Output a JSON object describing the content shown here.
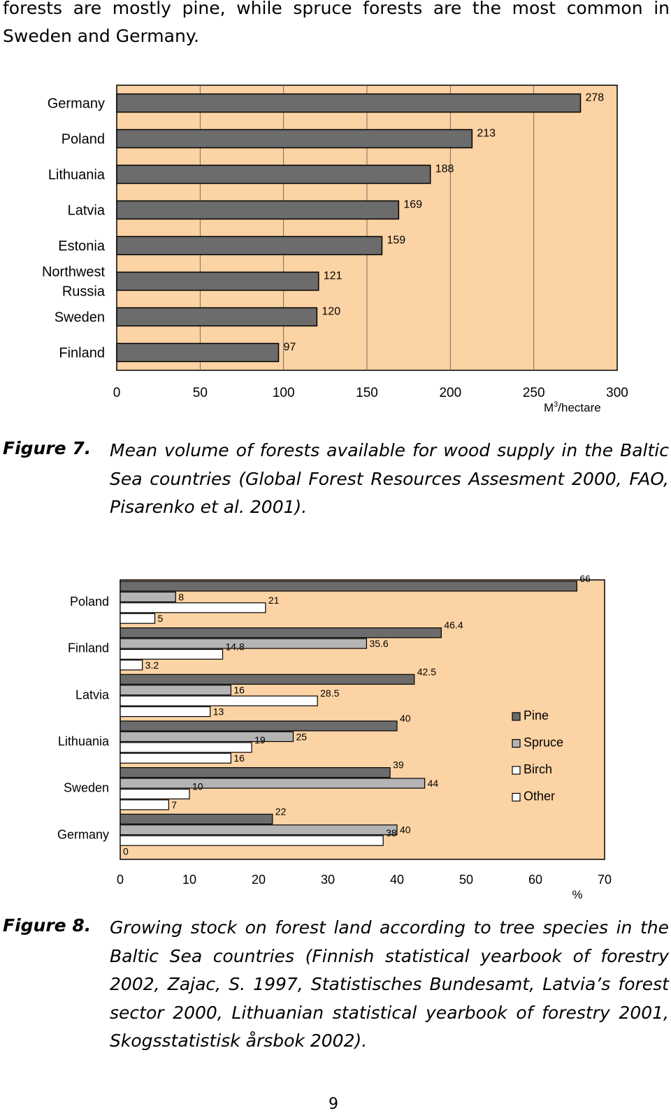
{
  "document": {
    "intro_text": "forests are mostly pine, while spruce forests are the most common in Sweden and Germany.",
    "page_number": "9"
  },
  "colors": {
    "plot_background": "#fcd3a4",
    "pine": "#6c6c6c",
    "spruce": "#b4b4b4",
    "birch": "#ffffff",
    "other": "#ffffff"
  },
  "figure7": {
    "label": "Figure 7.",
    "caption": "Mean volume of forests available for wood supply in the Baltic Sea countries (Global Forest Resources Assesment 2000, FAO, Pisarenko et al. 2001).",
    "chart_data": {
      "type": "bar",
      "orientation": "horizontal",
      "categories": [
        "Germany",
        "Poland",
        "Lithuania",
        "Latvia",
        "Estonia",
        "Northwest Russia",
        "Sweden",
        "Finland"
      ],
      "values": [
        278,
        213,
        188,
        169,
        159,
        121,
        120,
        97
      ],
      "value_labels": [
        "278",
        "213",
        "188",
        "169",
        "159",
        "121",
        "120",
        "97"
      ],
      "xlim": [
        0,
        300
      ],
      "x_ticks": [
        "0",
        "50",
        "100",
        "150",
        "200",
        "250",
        "300"
      ],
      "xlabel": "M3/hectare",
      "grid": true
    }
  },
  "figure8": {
    "label": "Figure 8.",
    "caption": "Growing stock on forest land according to tree species in the Baltic Sea countries (Finnish statistical yearbook of forestry 2002, Zajac, S. 1997, Statistisches Bundesamt, Latvia’s forest sector 2000, Lithuanian statistical yearbook of forestry 2001, Skogsstatistisk årsbok 2002).",
    "chart_data": {
      "type": "bar",
      "orientation": "horizontal",
      "categories": [
        "Poland",
        "Finland",
        "Latvia",
        "Lithuania",
        "Sweden",
        "Germany"
      ],
      "series": [
        {
          "name": "Pine",
          "values": [
            66,
            46.4,
            42.5,
            40,
            39,
            22
          ]
        },
        {
          "name": "Spruce",
          "values": [
            8,
            35.6,
            16,
            25,
            44,
            40
          ]
        },
        {
          "name": "Birch",
          "values": [
            21,
            14.8,
            28.5,
            19,
            10,
            38
          ]
        },
        {
          "name": "Other",
          "values": [
            5,
            3.2,
            13,
            16,
            7,
            0
          ]
        }
      ],
      "value_labels": [
        [
          "66",
          "8",
          "21",
          "5"
        ],
        [
          "46.4",
          "35.6",
          "14.8",
          "3.2"
        ],
        [
          "42.5",
          "16",
          "28.5",
          "13"
        ],
        [
          "40",
          "25",
          "19",
          "16"
        ],
        [
          "39",
          "44",
          "10",
          "7"
        ],
        [
          "22",
          "40",
          "38",
          "0"
        ]
      ],
      "xlim": [
        0,
        70
      ],
      "x_ticks": [
        "0",
        "10",
        "20",
        "30",
        "40",
        "50",
        "60",
        "70"
      ],
      "xlabel": "%",
      "legend": "right",
      "grid": false
    }
  }
}
